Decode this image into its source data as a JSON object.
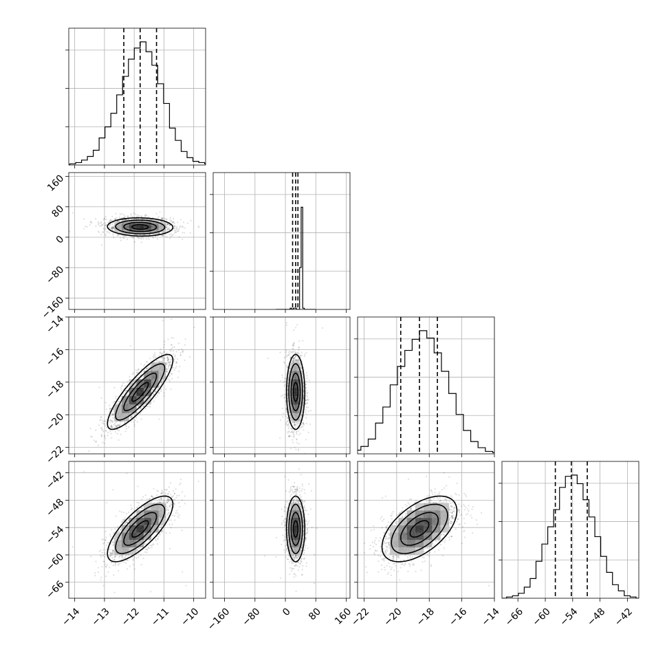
{
  "chart_data": {
    "type": "corner",
    "grid": true,
    "dimensions": [
      {
        "range": [
          -14.2,
          -9.6
        ],
        "ticks": [
          -14,
          -13,
          -12,
          -11,
          -10
        ],
        "tick_labels": [
          "−14",
          "−13",
          "−12",
          "−11",
          "−10"
        ],
        "mean": -11.8,
        "std": 0.55,
        "quantiles": [
          -12.35,
          -11.8,
          -11.25
        ]
      },
      {
        "range": [
          -190,
          170
        ],
        "ticks": [
          -160,
          -80,
          0,
          80,
          160
        ],
        "tick_labels": [
          "−160",
          "−80",
          "0",
          "80",
          "160"
        ],
        "mean": 27,
        "std": 12,
        "quantiles": [
          19,
          27,
          33
        ]
      },
      {
        "range": [
          -22.4,
          -14.0
        ],
        "ticks": [
          -22,
          -20,
          -18,
          -16,
          -14
        ],
        "tick_labels": [
          "−22",
          "−20",
          "−18",
          "−16",
          "−14"
        ],
        "mean": -18.6,
        "std": 1.15,
        "quantiles": [
          -19.75,
          -18.6,
          -17.5
        ]
      },
      {
        "range": [
          -69.5,
          -39.5
        ],
        "ticks": [
          -66,
          -60,
          -54,
          -48,
          -42
        ],
        "tick_labels": [
          "−66",
          "−60",
          "−54",
          "−48",
          "−42"
        ],
        "mean": -54.3,
        "std": 3.6,
        "quantiles": [
          -57.8,
          -54.3,
          -50.8
        ]
      }
    ],
    "correlations": [
      [
        1.0,
        -0.05,
        0.85,
        0.75
      ],
      [
        -0.05,
        1.0,
        0.0,
        0.0
      ],
      [
        0.85,
        0.0,
        1.0,
        0.55
      ],
      [
        0.75,
        0.0,
        0.55,
        1.0
      ]
    ],
    "histogram_heights": [
      [
        0.01,
        0.02,
        0.04,
        0.07,
        0.12,
        0.22,
        0.31,
        0.42,
        0.57,
        0.72,
        0.86,
        0.95,
        1.0,
        0.92,
        0.81,
        0.66,
        0.5,
        0.3,
        0.2,
        0.11,
        0.06,
        0.03,
        0.02,
        0.01
      ],
      [
        0.0,
        0.0,
        0.0,
        0.0,
        0.0,
        0.0,
        0.0,
        0.0,
        0.0,
        0.01,
        0.0,
        0.01,
        0.01,
        0.0,
        0.0,
        0.34,
        0.83,
        0.01,
        0.0,
        0.0,
        0.0,
        0.0,
        0.0,
        0.0,
        0.0
      ],
      [
        0.01,
        0.02,
        0.03,
        0.06,
        0.12,
        0.25,
        0.38,
        0.56,
        0.71,
        0.84,
        0.93,
        1.0,
        0.94,
        0.82,
        0.67,
        0.49,
        0.32,
        0.19,
        0.1,
        0.05,
        0.02,
        0.01
      ],
      [
        0.0,
        0.01,
        0.02,
        0.04,
        0.09,
        0.16,
        0.3,
        0.44,
        0.58,
        0.72,
        0.9,
        0.99,
        1.0,
        0.93,
        0.8,
        0.66,
        0.5,
        0.34,
        0.21,
        0.11,
        0.06,
        0.02,
        0.01,
        0.0
      ]
    ]
  }
}
